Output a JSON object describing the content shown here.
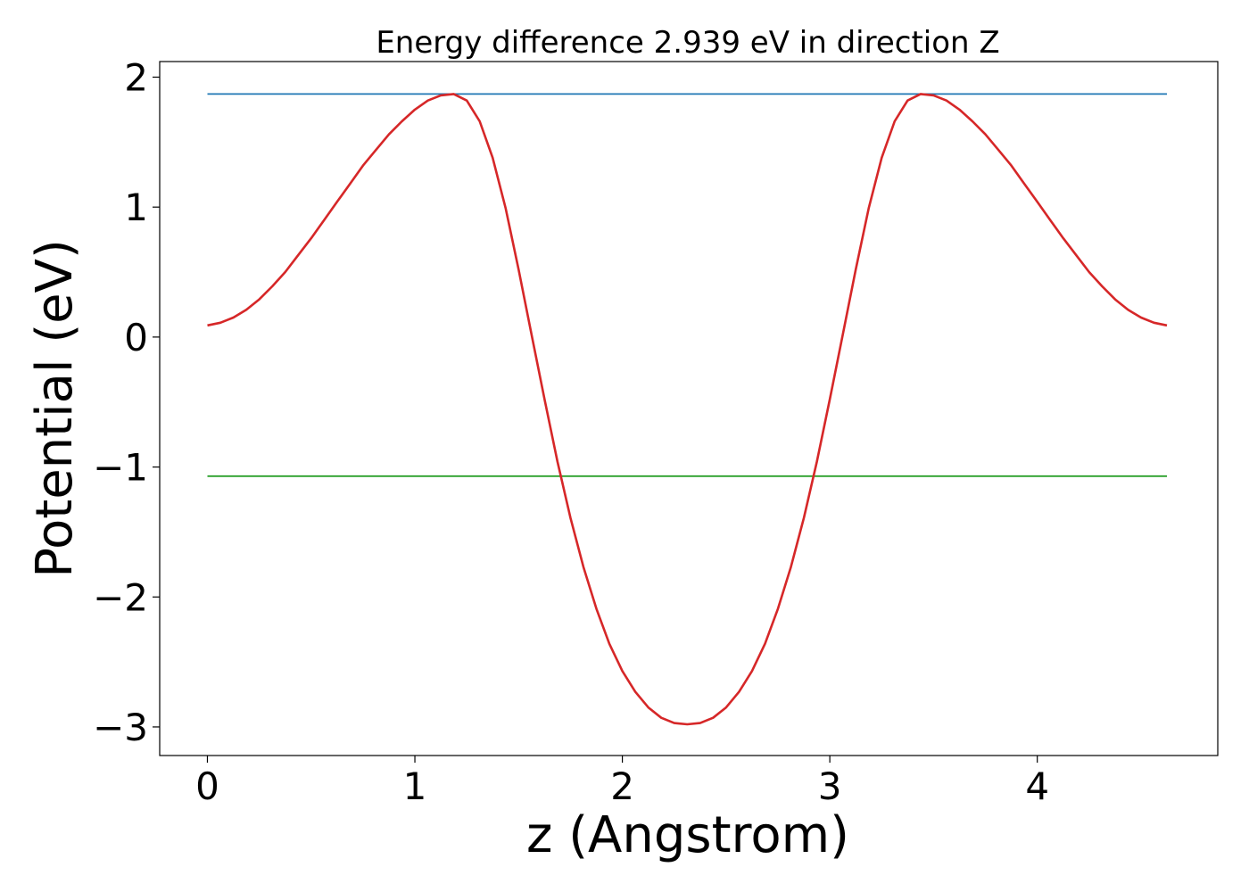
{
  "chart_data": {
    "type": "line",
    "title": "Energy difference 2.939 eV in direction Z",
    "xlabel": "z (Angstrom)",
    "ylabel": "Potential (eV)",
    "xlim": [
      -0.23,
      4.87
    ],
    "ylim": [
      -3.22,
      2.12
    ],
    "grid": false,
    "x_ticks": [
      0,
      1,
      2,
      3,
      4
    ],
    "x_tick_labels": [
      "0",
      "1",
      "2",
      "3",
      "4"
    ],
    "y_ticks": [
      2,
      1,
      0,
      -1,
      -2,
      -3
    ],
    "y_tick_labels": [
      "2",
      "1",
      "0",
      "−1",
      "−2",
      "−3"
    ],
    "series": [
      {
        "color": "#d62728",
        "x": [
          0,
          0.0625,
          0.125,
          0.1875,
          0.25,
          0.3125,
          0.375,
          0.4375,
          0.5,
          0.5625,
          0.625,
          0.6875,
          0.75,
          0.8125,
          0.875,
          0.9375,
          1.0,
          1.0625,
          1.125,
          1.1875,
          1.25,
          1.3125,
          1.375,
          1.4375,
          1.5,
          1.5625,
          1.625,
          1.6875,
          1.75,
          1.8125,
          1.875,
          1.9375,
          2.0,
          2.0625,
          2.125,
          2.1875,
          2.25,
          2.3125,
          2.375,
          2.4375,
          2.5,
          2.5625,
          2.625,
          2.6875,
          2.75,
          2.8125,
          2.875,
          2.9375,
          3.0,
          3.0625,
          3.125,
          3.1875,
          3.25,
          3.3125,
          3.375,
          3.4375,
          3.5,
          3.5625,
          3.625,
          3.6875,
          3.75,
          3.8125,
          3.875,
          3.9375,
          4.0,
          4.0625,
          4.125,
          4.1875,
          4.25,
          4.3125,
          4.375,
          4.4375,
          4.5,
          4.5625,
          4.625
        ],
        "y": [
          0.09,
          0.11,
          0.15,
          0.21,
          0.29,
          0.39,
          0.5,
          0.63,
          0.76,
          0.9,
          1.04,
          1.18,
          1.32,
          1.44,
          1.56,
          1.66,
          1.75,
          1.82,
          1.86,
          1.87,
          1.82,
          1.66,
          1.38,
          0.99,
          0.52,
          0.02,
          -0.48,
          -0.96,
          -1.39,
          -1.77,
          -2.09,
          -2.36,
          -2.57,
          -2.73,
          -2.85,
          -2.93,
          -2.97,
          -2.98,
          -2.97,
          -2.93,
          -2.85,
          -2.73,
          -2.57,
          -2.36,
          -2.09,
          -1.77,
          -1.39,
          -0.96,
          -0.48,
          0.02,
          0.52,
          0.99,
          1.38,
          1.66,
          1.82,
          1.87,
          1.86,
          1.82,
          1.75,
          1.66,
          1.56,
          1.44,
          1.32,
          1.18,
          1.04,
          0.9,
          0.76,
          0.63,
          0.5,
          0.39,
          0.29,
          0.21,
          0.15,
          0.11,
          0.09
        ]
      },
      {
        "color": "#1f77b4",
        "x": [
          0,
          4.625
        ],
        "y": [
          1.87,
          1.87
        ]
      },
      {
        "color": "#2ca02c",
        "x": [
          0,
          4.625
        ],
        "y": [
          -1.07,
          -1.07
        ]
      }
    ]
  }
}
